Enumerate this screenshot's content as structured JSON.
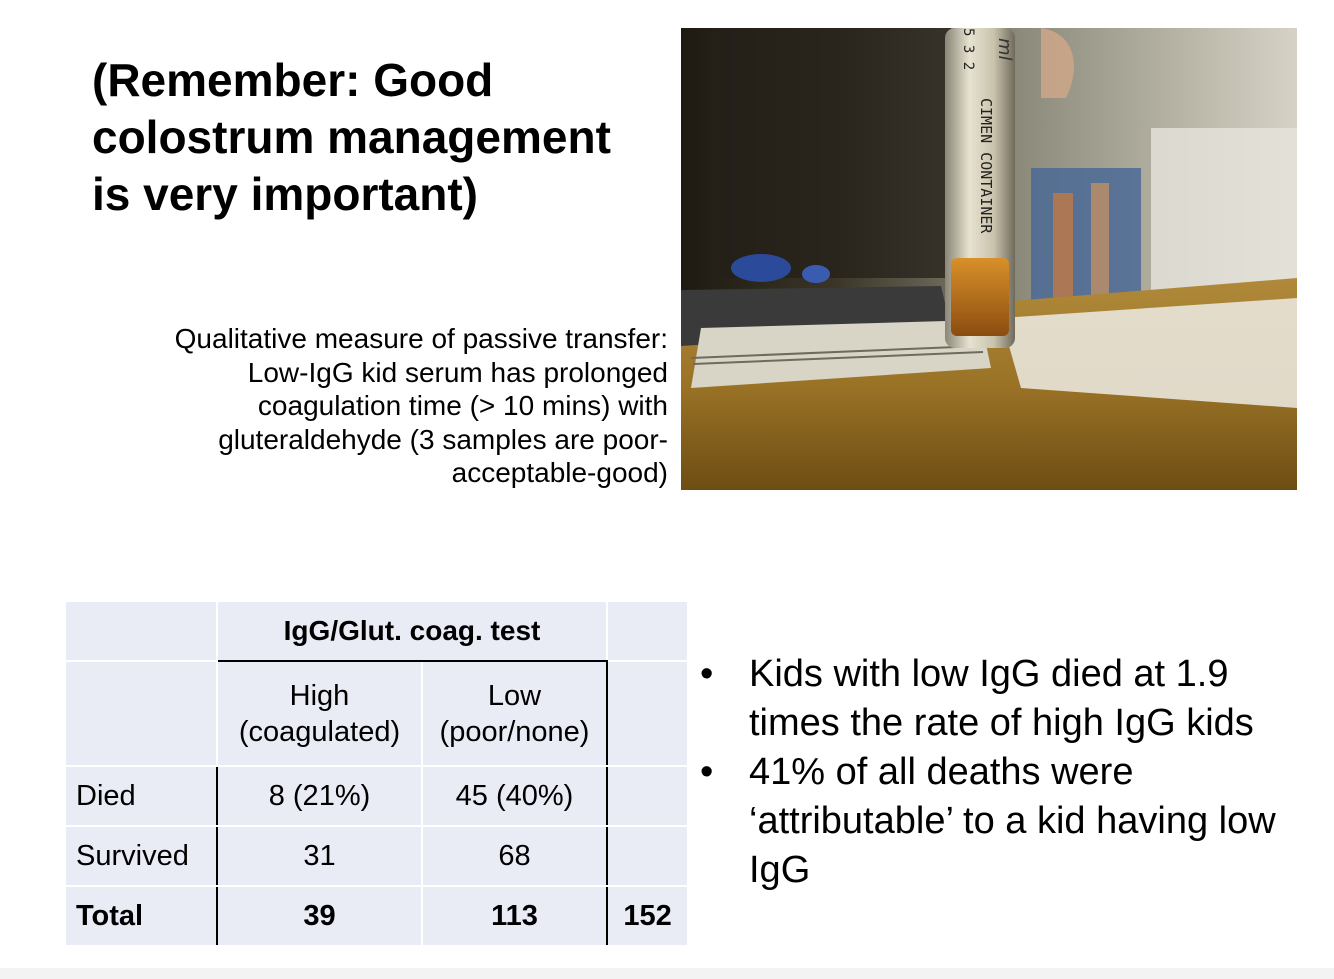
{
  "slide": {
    "heading": "(Remember: Good colostrum management is very important)",
    "caption": "Qualitative measure of passive transfer: Low-IgG kid serum has prolonged coagulation time (> 10 mins) with gluteraldehyde (3 samples are poor-acceptable-good)",
    "photo": {
      "tube_label_line1": "ml",
      "tube_label_line2": "CIMEN CONTAINER",
      "tube_label_line3": "5 3 2"
    }
  },
  "table": {
    "group_header": "IgG/Glut. coag. test",
    "col_high_line1": "High",
    "col_high_line2": "(coagulated)",
    "col_low_line1": "Low",
    "col_low_line2": "(poor/none)",
    "rows": [
      {
        "label": "Died",
        "high": "8 (21%)",
        "low": "45 (40%)",
        "total": ""
      },
      {
        "label": "Survived",
        "high": "31",
        "low": "68",
        "total": ""
      },
      {
        "label": "Total",
        "high": "39",
        "low": "113",
        "total": "152"
      }
    ]
  },
  "bullets": [
    "Kids with low IgG died at 1.9 times the rate of high IgG kids",
    "41% of all deaths were ‘attributable’ to a kid having low IgG"
  ],
  "bullet_marker": "•"
}
